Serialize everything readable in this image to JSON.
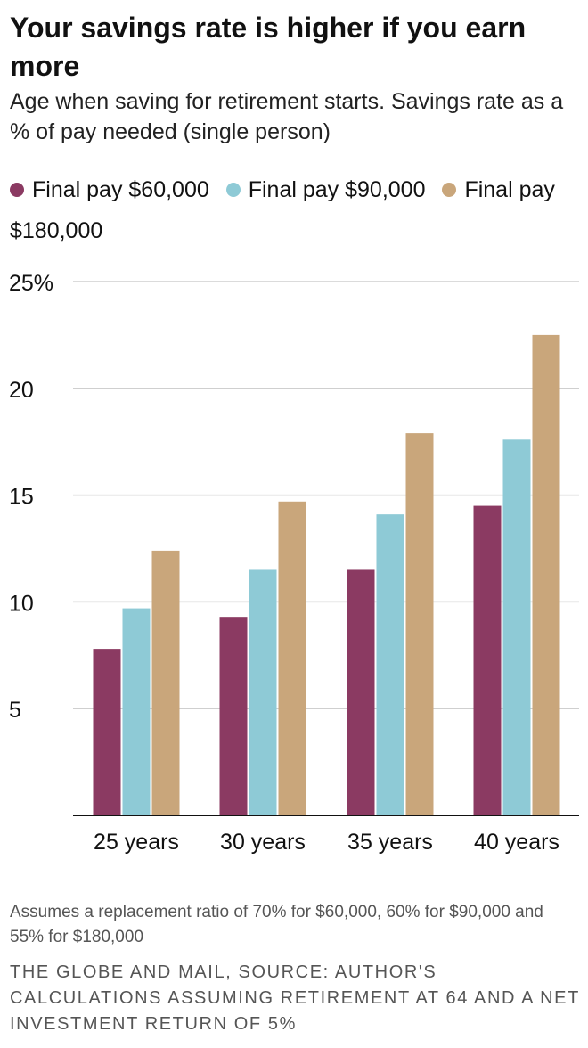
{
  "header": {
    "title": "Your savings rate is higher if you earn more",
    "subtitle": "Age when saving for retirement starts. Savings rate as a % of pay needed (single person)"
  },
  "footer": {
    "note": "Assumes a replacement ratio of 70% for $60,000, 60% for $90,000 and 55% for $180,000",
    "source": "THE GLOBE AND MAIL, SOURCE: AUTHOR'S CALCULATIONS ASSUMING RETIREMENT AT 64 AND A NET INVESTMENT RETURN OF 5%"
  },
  "chart_data": {
    "type": "bar",
    "title": "Your savings rate is higher if you earn more",
    "subtitle": "Age when saving for retirement starts. Savings rate as a % of pay needed (single person)",
    "xlabel": "",
    "ylabel": "",
    "categories": [
      "25 years",
      "30 years",
      "35 years",
      "40 years"
    ],
    "series": [
      {
        "name": "Final pay $60,000",
        "color": "#8b3a62",
        "values": [
          7.8,
          9.3,
          11.5,
          14.5
        ]
      },
      {
        "name": "Final pay $90,000",
        "color": "#8ecad6",
        "values": [
          9.7,
          11.5,
          14.1,
          17.6
        ]
      },
      {
        "name": "Final pay $180,000",
        "color": "#c9a67b",
        "values": [
          12.4,
          14.7,
          17.9,
          22.5
        ]
      }
    ],
    "ylim": [
      0,
      25
    ],
    "yticks": [
      5,
      10,
      15,
      20,
      25
    ],
    "ytick_labels": [
      "5",
      "10",
      "15",
      "20",
      "25%"
    ],
    "grid": true,
    "legend_position": "top"
  }
}
